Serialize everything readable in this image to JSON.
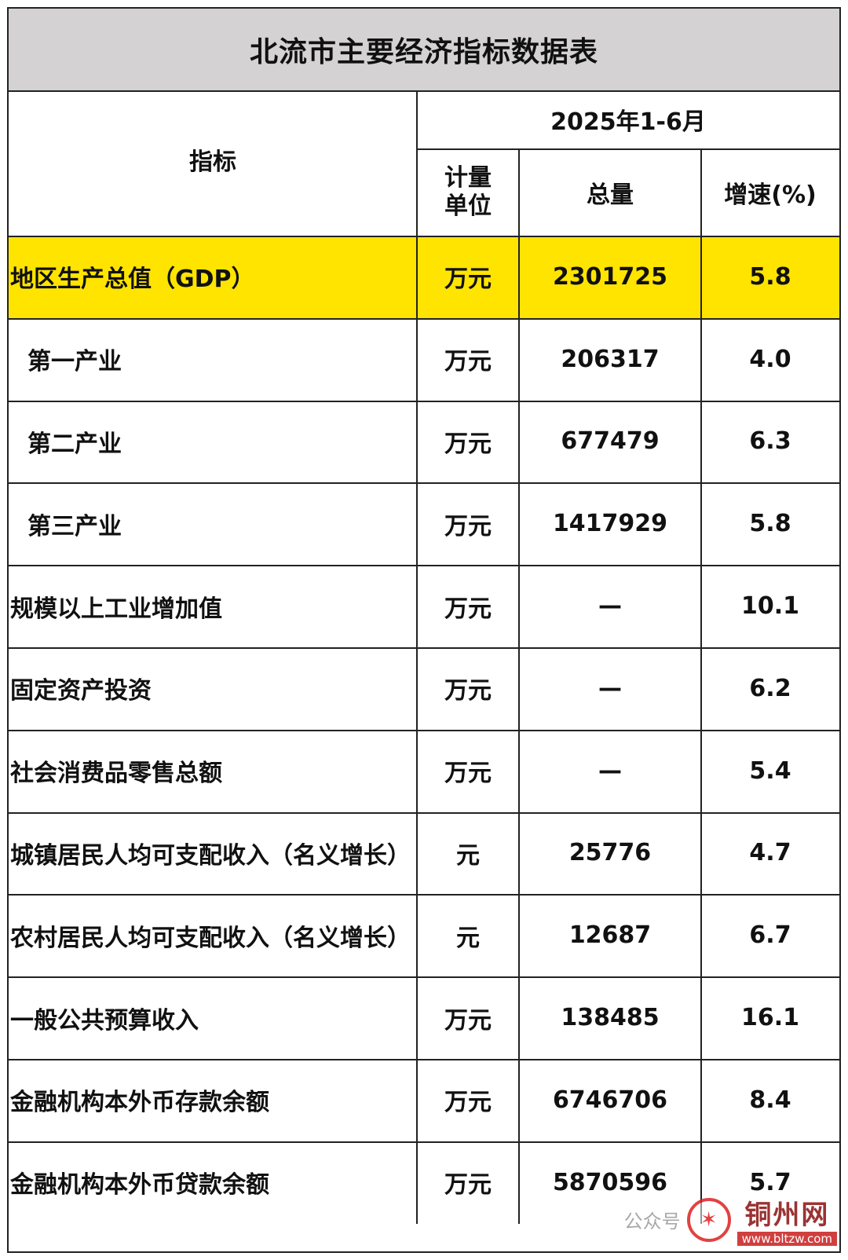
{
  "title": "北流市主要经济指标数据表",
  "header": {
    "indicator": "指标",
    "period": "2025年1-6月",
    "unit": "计量\n单位",
    "unit_line1": "计量",
    "unit_line2": "单位",
    "total": "总量",
    "growth": "增速(%)"
  },
  "rows": [
    {
      "name": "地区生产总值（GDP）",
      "unit": "万元",
      "total": "2301725",
      "growth": "5.8",
      "highlight": true
    },
    {
      "name": "第一产业",
      "unit": "万元",
      "total": "206317",
      "growth": "4.0",
      "indent": true
    },
    {
      "name": "第二产业",
      "unit": "万元",
      "total": "677479",
      "growth": "6.3",
      "indent": true
    },
    {
      "name": "第三产业",
      "unit": "万元",
      "total": "1417929",
      "growth": "5.8",
      "indent": true
    },
    {
      "name": "规模以上工业增加值",
      "unit": "万元",
      "total": "—",
      "growth": "10.1"
    },
    {
      "name": "固定资产投资",
      "unit": "万元",
      "total": "—",
      "growth": "6.2"
    },
    {
      "name": "社会消费品零售总额",
      "unit": "万元",
      "total": "—",
      "growth": "5.4"
    },
    {
      "name": "城镇居民人均可支配收入（名义增长）",
      "unit": "元",
      "total": "25776",
      "growth": "4.7"
    },
    {
      "name": "农村居民人均可支配收入（名义增长）",
      "unit": "元",
      "total": "12687",
      "growth": "6.7"
    },
    {
      "name": "一般公共预算收入",
      "unit": "万元",
      "total": "138485",
      "growth": "16.1"
    },
    {
      "name": "金融机构本外币存款余额",
      "unit": "万元",
      "total": "6746706",
      "growth": "8.4"
    },
    {
      "name": "金融机构本外币贷款余额",
      "unit": "万元",
      "total": "5870596",
      "growth": "5.7"
    }
  ],
  "watermark": {
    "account_text": "公众号",
    "brand": "铜州网",
    "url": "www.bltzw.com"
  },
  "colors": {
    "highlight": "#ffe400",
    "title_bg": "#d4d2d3"
  }
}
